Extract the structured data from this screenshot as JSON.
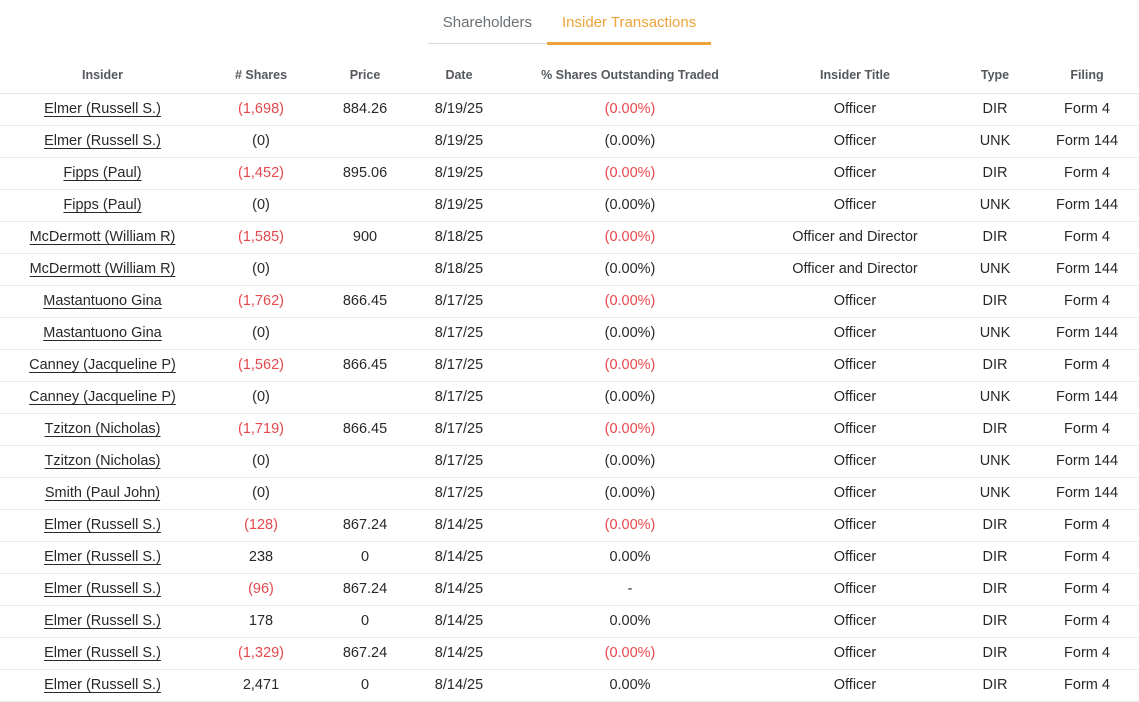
{
  "tabs": [
    {
      "id": "shareholders",
      "label": "Shareholders",
      "active": false
    },
    {
      "id": "insider-transactions",
      "label": "Insider Transactions",
      "active": true
    }
  ],
  "colors": {
    "active_tab_accent": "#eea339",
    "negative_value_red": "#e5484d",
    "header_text": "#55595e",
    "row_text": "#26282b",
    "row_border": "#e8eaec"
  },
  "table": {
    "columns": [
      {
        "key": "insider",
        "label": "Insider"
      },
      {
        "key": "shares",
        "label": "# Shares"
      },
      {
        "key": "price",
        "label": "Price"
      },
      {
        "key": "date",
        "label": "Date"
      },
      {
        "key": "pct",
        "label": "% Shares Outstanding Traded"
      },
      {
        "key": "title",
        "label": "Insider Title"
      },
      {
        "key": "type",
        "label": "Type"
      },
      {
        "key": "filing",
        "label": "Filing"
      }
    ],
    "rows": [
      {
        "insider": "Elmer (Russell S.)",
        "shares": "(1,698)",
        "shares_negative": true,
        "price": "884.26",
        "date": "8/19/25",
        "pct": "(0.00%)",
        "pct_negative": true,
        "title": "Officer",
        "type": "DIR",
        "filing": "Form 4"
      },
      {
        "insider": "Elmer (Russell S.)",
        "shares": "(0)",
        "shares_negative": false,
        "price": "",
        "date": "8/19/25",
        "pct": "(0.00%)",
        "pct_negative": false,
        "title": "Officer",
        "type": "UNK",
        "filing": "Form 144"
      },
      {
        "insider": "Fipps (Paul)",
        "shares": "(1,452)",
        "shares_negative": true,
        "price": "895.06",
        "date": "8/19/25",
        "pct": "(0.00%)",
        "pct_negative": true,
        "title": "Officer",
        "type": "DIR",
        "filing": "Form 4"
      },
      {
        "insider": "Fipps (Paul)",
        "shares": "(0)",
        "shares_negative": false,
        "price": "",
        "date": "8/19/25",
        "pct": "(0.00%)",
        "pct_negative": false,
        "title": "Officer",
        "type": "UNK",
        "filing": "Form 144"
      },
      {
        "insider": "McDermott (William R)",
        "shares": "(1,585)",
        "shares_negative": true,
        "price": "900",
        "date": "8/18/25",
        "pct": "(0.00%)",
        "pct_negative": true,
        "title": "Officer and Director",
        "type": "DIR",
        "filing": "Form 4"
      },
      {
        "insider": "McDermott (William R)",
        "shares": "(0)",
        "shares_negative": false,
        "price": "",
        "date": "8/18/25",
        "pct": "(0.00%)",
        "pct_negative": false,
        "title": "Officer and Director",
        "type": "UNK",
        "filing": "Form 144"
      },
      {
        "insider": "Mastantuono Gina",
        "shares": "(1,762)",
        "shares_negative": true,
        "price": "866.45",
        "date": "8/17/25",
        "pct": "(0.00%)",
        "pct_negative": true,
        "title": "Officer",
        "type": "DIR",
        "filing": "Form 4"
      },
      {
        "insider": "Mastantuono Gina",
        "shares": "(0)",
        "shares_negative": false,
        "price": "",
        "date": "8/17/25",
        "pct": "(0.00%)",
        "pct_negative": false,
        "title": "Officer",
        "type": "UNK",
        "filing": "Form 144"
      },
      {
        "insider": "Canney (Jacqueline P)",
        "shares": "(1,562)",
        "shares_negative": true,
        "price": "866.45",
        "date": "8/17/25",
        "pct": "(0.00%)",
        "pct_negative": true,
        "title": "Officer",
        "type": "DIR",
        "filing": "Form 4"
      },
      {
        "insider": "Canney (Jacqueline P)",
        "shares": "(0)",
        "shares_negative": false,
        "price": "",
        "date": "8/17/25",
        "pct": "(0.00%)",
        "pct_negative": false,
        "title": "Officer",
        "type": "UNK",
        "filing": "Form 144"
      },
      {
        "insider": "Tzitzon (Nicholas)",
        "shares": "(1,719)",
        "shares_negative": true,
        "price": "866.45",
        "date": "8/17/25",
        "pct": "(0.00%)",
        "pct_negative": true,
        "title": "Officer",
        "type": "DIR",
        "filing": "Form 4"
      },
      {
        "insider": "Tzitzon (Nicholas)",
        "shares": "(0)",
        "shares_negative": false,
        "price": "",
        "date": "8/17/25",
        "pct": "(0.00%)",
        "pct_negative": false,
        "title": "Officer",
        "type": "UNK",
        "filing": "Form 144"
      },
      {
        "insider": "Smith (Paul John)",
        "shares": "(0)",
        "shares_negative": false,
        "price": "",
        "date": "8/17/25",
        "pct": "(0.00%)",
        "pct_negative": false,
        "title": "Officer",
        "type": "UNK",
        "filing": "Form 144"
      },
      {
        "insider": "Elmer (Russell S.)",
        "shares": "(128)",
        "shares_negative": true,
        "price": "867.24",
        "date": "8/14/25",
        "pct": "(0.00%)",
        "pct_negative": true,
        "title": "Officer",
        "type": "DIR",
        "filing": "Form 4"
      },
      {
        "insider": "Elmer (Russell S.)",
        "shares": "238",
        "shares_negative": false,
        "price": "0",
        "date": "8/14/25",
        "pct": "0.00%",
        "pct_negative": false,
        "title": "Officer",
        "type": "DIR",
        "filing": "Form 4"
      },
      {
        "insider": "Elmer (Russell S.)",
        "shares": "(96)",
        "shares_negative": true,
        "price": "867.24",
        "date": "8/14/25",
        "pct": "-",
        "pct_negative": false,
        "title": "Officer",
        "type": "DIR",
        "filing": "Form 4"
      },
      {
        "insider": "Elmer (Russell S.)",
        "shares": "178",
        "shares_negative": false,
        "price": "0",
        "date": "8/14/25",
        "pct": "0.00%",
        "pct_negative": false,
        "title": "Officer",
        "type": "DIR",
        "filing": "Form 4"
      },
      {
        "insider": "Elmer (Russell S.)",
        "shares": "(1,329)",
        "shares_negative": true,
        "price": "867.24",
        "date": "8/14/25",
        "pct": "(0.00%)",
        "pct_negative": true,
        "title": "Officer",
        "type": "DIR",
        "filing": "Form 4"
      },
      {
        "insider": "Elmer (Russell S.)",
        "shares": "2,471",
        "shares_negative": false,
        "price": "0",
        "date": "8/14/25",
        "pct": "0.00%",
        "pct_negative": false,
        "title": "Officer",
        "type": "DIR",
        "filing": "Form 4"
      }
    ]
  }
}
